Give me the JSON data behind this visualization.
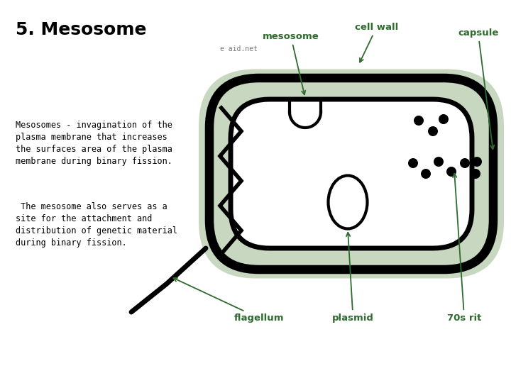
{
  "title": "5. Mesosome",
  "title_fontsize": 18,
  "text1": "Mesosomes - invagination of the\nplasma membrane that increases\nthe surfaces area of the plasma\nmembrane during binary fission.",
  "text2": " The mesosome also serves as a\nsite for the attachment and\ndistribution of genetic material\nduring binary fission.",
  "bg_color": "#ffffff",
  "capsule_color": "#c8d8c0",
  "label_color": "#2e6b2e",
  "watermark": "e aid.net",
  "text_fontsize": 8.5,
  "label_fontsize": 9.5
}
